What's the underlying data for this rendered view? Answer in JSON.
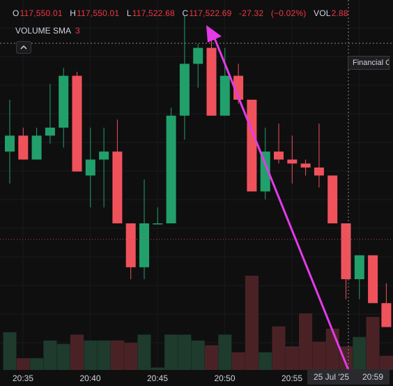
{
  "ohlc_bar": {
    "open_key": "O",
    "open": "117,550.01",
    "high_key": "H",
    "high": "117,550.01",
    "low_key": "L",
    "low": "117,522.68",
    "close_key": "C",
    "close": "117,522.69",
    "change": "-27.32",
    "change_pct": "(−0.02%)",
    "vol_key": "VOL",
    "vol": "2.88"
  },
  "volume_indicator": {
    "name": "VOLUME SMA",
    "value": "3"
  },
  "tooltip": "Financial Chart",
  "crosshair_time": {
    "date": "25 Jul '25",
    "time": "20:59"
  },
  "colors": {
    "up": "#22a06b",
    "down": "#f0525c",
    "vol_up": "#1e3b2d",
    "vol_down": "#4a2226",
    "arrow": "#e53ae8",
    "crosshair": "#8a8a8a",
    "last_price": "#c0494f",
    "background": "#0f0f10"
  },
  "icons": {
    "collapse": "chevron-up-icon"
  },
  "chart_data": {
    "type": "candlestick",
    "x_tick_labels": [
      "20:35",
      "20:40",
      "20:45",
      "20:50",
      "20:55"
    ],
    "y_range": [
      117505,
      117575
    ],
    "candles": [
      {
        "o": 117544,
        "h": 117557,
        "l": 117536,
        "c": 117548
      },
      {
        "o": 117548,
        "h": 117550,
        "l": 117542,
        "c": 117542
      },
      {
        "o": 117542,
        "h": 117550,
        "l": 117542,
        "c": 117548
      },
      {
        "o": 117548,
        "h": 117561,
        "l": 117546,
        "c": 117550
      },
      {
        "o": 117550,
        "h": 117565,
        "l": 117545,
        "c": 117563
      },
      {
        "o": 117563,
        "h": 117564,
        "l": 117539,
        "c": 117539
      },
      {
        "o": 117538,
        "h": 117550,
        "l": 117530,
        "c": 117542
      },
      {
        "o": 117542,
        "h": 117550,
        "l": 117530,
        "c": 117544
      },
      {
        "o": 117544,
        "h": 117552,
        "l": 117526,
        "c": 117526
      },
      {
        "o": 117526,
        "h": 117526,
        "l": 117512,
        "c": 117515
      },
      {
        "o": 117515,
        "h": 117537,
        "l": 117512,
        "c": 117526
      },
      {
        "o": 117526,
        "h": 117530,
        "l": 117526,
        "c": 117526
      },
      {
        "o": 117526,
        "h": 117555,
        "l": 117526,
        "c": 117553
      },
      {
        "o": 117553,
        "h": 117578,
        "l": 117547,
        "c": 117566
      },
      {
        "o": 117566,
        "h": 117571,
        "l": 117560,
        "c": 117570
      },
      {
        "o": 117570,
        "h": 117572,
        "l": 117553,
        "c": 117553
      },
      {
        "o": 117553,
        "h": 117570,
        "l": 117553,
        "c": 117563
      },
      {
        "o": 117563,
        "h": 117566,
        "l": 117556,
        "c": 117557
      },
      {
        "o": 117557,
        "h": 117557,
        "l": 117534,
        "c": 117534
      },
      {
        "o": 117534,
        "h": 117550,
        "l": 117532,
        "c": 117544
      },
      {
        "o": 117544,
        "h": 117551,
        "l": 117541,
        "c": 117542
      },
      {
        "o": 117542,
        "h": 117548,
        "l": 117536,
        "c": 117541
      },
      {
        "o": 117541,
        "h": 117542,
        "l": 117538,
        "c": 117540
      },
      {
        "o": 117540,
        "h": 117551,
        "l": 117535,
        "c": 117538
      },
      {
        "o": 117538,
        "h": 117538,
        "l": 117526,
        "c": 117526
      },
      {
        "o": 117526,
        "h": 117526,
        "l": 117507,
        "c": 117512
      },
      {
        "o": 117512,
        "h": 117518,
        "l": 117507,
        "c": 117518
      },
      {
        "o": 117518,
        "h": 117518,
        "l": 117506,
        "c": 117506
      },
      {
        "o": 117506,
        "h": 117511,
        "l": 117500,
        "c": 117500
      }
    ],
    "volume": [
      3.2,
      1.0,
      1.0,
      2.5,
      2.2,
      3.0,
      2.5,
      2.5,
      2.5,
      2.3,
      3.0,
      0.2,
      3.0,
      3.0,
      2.5,
      2.1,
      3.0,
      1.5,
      8.0,
      1.5,
      3.7,
      2.0,
      4.8,
      2.4,
      3.5,
      2.0,
      2.8,
      4.5,
      1.2
    ]
  }
}
